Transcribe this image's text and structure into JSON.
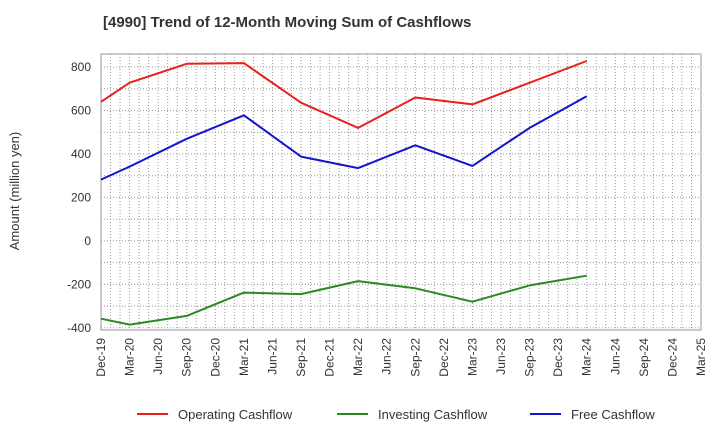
{
  "chart_data": {
    "type": "line",
    "title": "[4990]  Trend of 12-Month Moving Sum of Cashflows",
    "ylabel": "Amount (million yen)",
    "xlabel": "",
    "ylim": [
      -410,
      860
    ],
    "yticks": [
      800,
      600,
      400,
      200,
      0,
      -200,
      -400
    ],
    "grid": true,
    "legend_position": "bottom",
    "categories": [
      "Dec-19",
      "Mar-20",
      "Jun-20",
      "Sep-20",
      "Dec-20",
      "Mar-21",
      "Jun-21",
      "Sep-21",
      "Dec-21",
      "Mar-22",
      "Jun-22",
      "Sep-22",
      "Dec-22",
      "Mar-23",
      "Jun-23",
      "Sep-23",
      "Dec-23",
      "Mar-24",
      "Jun-24",
      "Sep-24",
      "Dec-24",
      "Mar-25"
    ],
    "series": [
      {
        "name": "Operating Cashflow",
        "color": "#e8201c",
        "values": [
          640,
          728,
          null,
          815,
          null,
          818,
          null,
          636,
          null,
          520,
          null,
          660,
          null,
          628,
          null,
          null,
          null,
          828,
          null,
          null,
          null,
          null
        ]
      },
      {
        "name": "Investing Cashflow",
        "color": "#2a8a22",
        "values": [
          -358,
          -385,
          null,
          -345,
          null,
          -238,
          null,
          -245,
          null,
          -185,
          null,
          -218,
          null,
          -280,
          null,
          -205,
          null,
          -160,
          null,
          null,
          null,
          null
        ]
      },
      {
        "name": "Free Cashflow",
        "color": "#1414d0",
        "values": [
          282,
          342,
          null,
          470,
          null,
          578,
          null,
          388,
          null,
          335,
          null,
          440,
          null,
          345,
          null,
          520,
          null,
          666,
          null,
          null,
          null,
          null
        ]
      }
    ]
  }
}
